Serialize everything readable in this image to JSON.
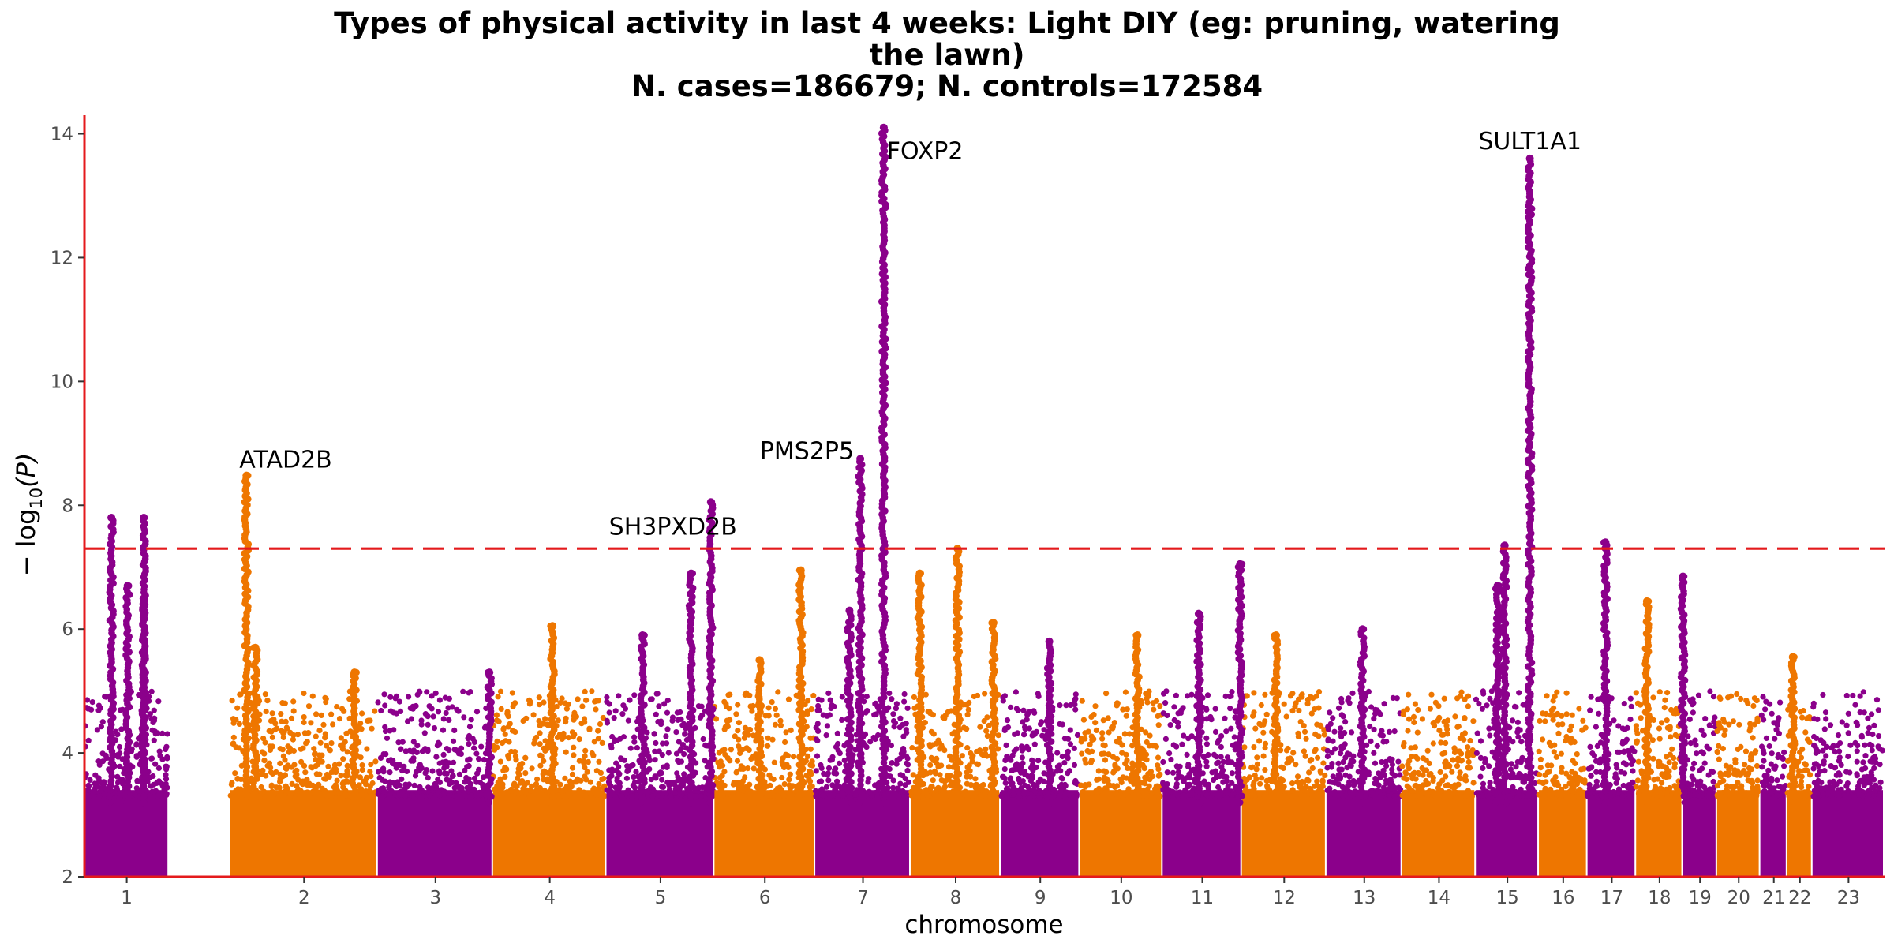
{
  "chart_data": {
    "type": "scatter",
    "title_lines": [
      "Types of physical activity in last 4 weeks: Light DIY (eg: pruning, watering",
      "the lawn)",
      "N. cases=186679; N. controls=172584"
    ],
    "xlabel": "chromosome",
    "ylabel_prefix": "− log",
    "ylabel_sub": "10",
    "ylabel_suffix": "(P)",
    "ylim": [
      2,
      14.3
    ],
    "yticks": [
      2,
      4,
      6,
      8,
      10,
      12,
      14
    ],
    "significance_threshold": 7.3,
    "colors": {
      "odd": "#8B008B",
      "even": "#EE7600",
      "threshold": "#E41A1C",
      "axis": "#E41A1C"
    },
    "chromosomes": [
      {
        "label": "1",
        "start": 0.0,
        "end": 0.047
      },
      {
        "label": "2",
        "start": 0.081,
        "end": 0.163
      },
      {
        "label": "3",
        "start": 0.163,
        "end": 0.227
      },
      {
        "label": "4",
        "start": 0.227,
        "end": 0.29
      },
      {
        "label": "5",
        "start": 0.29,
        "end": 0.35
      },
      {
        "label": "6",
        "start": 0.35,
        "end": 0.406
      },
      {
        "label": "7",
        "start": 0.406,
        "end": 0.459
      },
      {
        "label": "8",
        "start": 0.459,
        "end": 0.509
      },
      {
        "label": "9",
        "start": 0.509,
        "end": 0.553
      },
      {
        "label": "10",
        "start": 0.553,
        "end": 0.599
      },
      {
        "label": "11",
        "start": 0.599,
        "end": 0.643
      },
      {
        "label": "12",
        "start": 0.643,
        "end": 0.69
      },
      {
        "label": "13",
        "start": 0.69,
        "end": 0.732
      },
      {
        "label": "14",
        "start": 0.732,
        "end": 0.773
      },
      {
        "label": "15",
        "start": 0.773,
        "end": 0.808
      },
      {
        "label": "16",
        "start": 0.808,
        "end": 0.835
      },
      {
        "label": "17",
        "start": 0.835,
        "end": 0.862
      },
      {
        "label": "18",
        "start": 0.862,
        "end": 0.888
      },
      {
        "label": "19",
        "start": 0.888,
        "end": 0.907
      },
      {
        "label": "20",
        "start": 0.907,
        "end": 0.931
      },
      {
        "label": "21",
        "start": 0.931,
        "end": 0.946
      },
      {
        "label": "22",
        "start": 0.946,
        "end": 0.96
      },
      {
        "label": "23",
        "start": 0.96,
        "end": 1.0
      }
    ],
    "peaks": [
      {
        "pos": 0.015,
        "top": 7.8
      },
      {
        "pos": 0.024,
        "top": 6.7
      },
      {
        "pos": 0.033,
        "top": 6.5
      },
      {
        "pos": 0.033,
        "top": 7.8
      },
      {
        "pos": 0.09,
        "top": 8.48
      },
      {
        "pos": 0.095,
        "top": 5.7
      },
      {
        "pos": 0.15,
        "top": 5.3
      },
      {
        "pos": 0.225,
        "top": 5.3
      },
      {
        "pos": 0.26,
        "top": 6.05
      },
      {
        "pos": 0.31,
        "top": 5.9
      },
      {
        "pos": 0.337,
        "top": 6.9
      },
      {
        "pos": 0.348,
        "top": 8.05
      },
      {
        "pos": 0.375,
        "top": 5.5
      },
      {
        "pos": 0.398,
        "top": 6.95
      },
      {
        "pos": 0.425,
        "top": 6.3
      },
      {
        "pos": 0.431,
        "top": 8.75
      },
      {
        "pos": 0.444,
        "top": 14.1
      },
      {
        "pos": 0.464,
        "top": 6.9
      },
      {
        "pos": 0.485,
        "top": 7.3
      },
      {
        "pos": 0.505,
        "top": 6.1
      },
      {
        "pos": 0.536,
        "top": 5.8
      },
      {
        "pos": 0.585,
        "top": 5.9
      },
      {
        "pos": 0.619,
        "top": 6.25
      },
      {
        "pos": 0.642,
        "top": 7.05
      },
      {
        "pos": 0.662,
        "top": 5.9
      },
      {
        "pos": 0.71,
        "top": 6.0
      },
      {
        "pos": 0.785,
        "top": 6.7
      },
      {
        "pos": 0.789,
        "top": 7.35
      },
      {
        "pos": 0.803,
        "top": 13.6
      },
      {
        "pos": 0.845,
        "top": 7.4
      },
      {
        "pos": 0.868,
        "top": 6.45
      },
      {
        "pos": 0.888,
        "top": 6.85
      },
      {
        "pos": 0.949,
        "top": 5.55
      }
    ],
    "annotations": [
      {
        "label": "ATAD2B",
        "x": 0.09,
        "y": 8.48,
        "anchor": "start",
        "dx": -9,
        "dy": -10
      },
      {
        "label": "SH3PXD2B",
        "x": 0.348,
        "y": 8.05,
        "anchor": "end",
        "dx": 33,
        "dy": 41
      },
      {
        "label": "PMS2P5",
        "x": 0.431,
        "y": 8.75,
        "anchor": "end",
        "dx": -8,
        "dy": 0
      },
      {
        "label": "FOXP2",
        "x": 0.444,
        "y": 14.1,
        "anchor": "start",
        "dx": 4,
        "dy": 40
      },
      {
        "label": "SULT1A1",
        "x": 0.803,
        "y": 13.6,
        "anchor": "middle",
        "dx": 0,
        "dy": -12
      }
    ]
  }
}
